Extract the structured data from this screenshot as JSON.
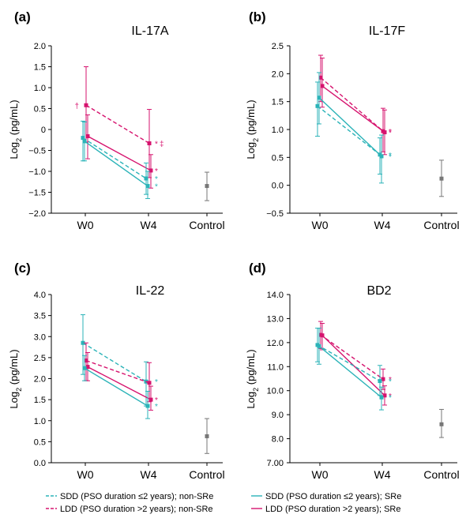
{
  "colors": {
    "teal": "#2bb3b8",
    "magenta": "#d6136e",
    "control": "#777777",
    "axis": "#000000"
  },
  "x_categories": [
    "W0",
    "W4",
    "Control"
  ],
  "y_label_main": "Log",
  "y_label_sub": "2",
  "y_label_unit": " (pg/mL)",
  "legend": [
    {
      "key": "sdd_nonsre",
      "text": "SDD (PSO duration ≤2 years); non-SRe",
      "color": "teal",
      "dash": true
    },
    {
      "key": "sdd_sre",
      "text": "SDD (PSO duration ≤2 years); SRe",
      "color": "teal",
      "dash": false
    },
    {
      "key": "ldd_nonsre",
      "text": "LDD (PSO duration >2 years); non-SRe",
      "color": "magenta",
      "dash": true
    },
    {
      "key": "ldd_sre",
      "text": "LDD (PSO duration >2 years); SRe",
      "color": "magenta",
      "dash": false
    }
  ],
  "chart_data": [
    {
      "type": "line",
      "letter": "(a)",
      "title": "IL-17A",
      "ylim": [
        -2.0,
        2.0
      ],
      "yticks": [
        "2.0",
        "1.5",
        "1.0",
        "0.5",
        "0",
        "−0.5",
        "−1.0",
        "−1.5",
        "−2.0"
      ],
      "ytick_values": [
        2.0,
        1.5,
        1.0,
        0.5,
        0,
        -0.5,
        -1.0,
        -1.5,
        -2.0
      ],
      "series": [
        {
          "key": "ldd_nonsre",
          "w0": {
            "mean": 0.58,
            "lo": -0.3,
            "hi": 1.5
          },
          "w4": {
            "mean": -0.33,
            "lo": -1.15,
            "hi": 0.48
          }
        },
        {
          "key": "ldd_sre",
          "w0": {
            "mean": -0.16,
            "lo": -0.7,
            "hi": 0.35
          },
          "w4": {
            "mean": -0.98,
            "lo": -1.4,
            "hi": -0.6
          }
        },
        {
          "key": "sdd_nonsre",
          "w0": {
            "mean": -0.2,
            "lo": -0.75,
            "hi": 0.2
          },
          "w4": {
            "mean": -1.17,
            "lo": -1.55,
            "hi": -0.8
          }
        },
        {
          "key": "sdd_sre",
          "w0": {
            "mean": -0.28,
            "lo": -0.75,
            "hi": 0.18
          },
          "w4": {
            "mean": -1.35,
            "lo": -1.65,
            "hi": -1.0
          }
        }
      ],
      "control": {
        "mean": -1.35,
        "lo": -1.7,
        "hi": -1.02
      },
      "annotations": [
        {
          "text": "†",
          "at": "w0",
          "series": "ldd_nonsre",
          "side": "left",
          "color": "magenta"
        },
        {
          "text": "*",
          "at": "w4",
          "series": "ldd_nonsre",
          "side": "right",
          "color": "magenta"
        },
        {
          "text": "‡",
          "at": "w4",
          "series": "ldd_nonsre",
          "side": "right2",
          "color": "magenta"
        },
        {
          "text": "*",
          "at": "w4",
          "series": "ldd_sre",
          "side": "right",
          "color": "magenta"
        },
        {
          "text": "*",
          "at": "w4",
          "series": "sdd_nonsre",
          "side": "right",
          "color": "teal"
        },
        {
          "text": "*",
          "at": "w4",
          "series": "sdd_sre",
          "side": "right",
          "color": "teal"
        }
      ]
    },
    {
      "type": "line",
      "letter": "(b)",
      "title": "IL-17F",
      "ylim": [
        -0.5,
        2.5
      ],
      "yticks": [
        "2.5",
        "2.0",
        "1.5",
        "1.0",
        "0.5",
        "0.0",
        "−0.5"
      ],
      "ytick_values": [
        2.5,
        2.0,
        1.5,
        1.0,
        0.5,
        0.0,
        -0.5
      ],
      "series": [
        {
          "key": "ldd_nonsre",
          "w0": {
            "mean": 1.93,
            "lo": 1.5,
            "hi": 2.33
          },
          "w4": {
            "mean": 0.97,
            "lo": 0.6,
            "hi": 1.38
          }
        },
        {
          "key": "ldd_sre",
          "w0": {
            "mean": 1.78,
            "lo": 1.4,
            "hi": 2.28
          },
          "w4": {
            "mean": 0.95,
            "lo": 0.55,
            "hi": 1.35
          }
        },
        {
          "key": "sdd_nonsre",
          "w0": {
            "mean": 1.42,
            "lo": 0.88,
            "hi": 1.85
          },
          "w4": {
            "mean": 0.55,
            "lo": 0.2,
            "hi": 0.85
          }
        },
        {
          "key": "sdd_sre",
          "w0": {
            "mean": 1.57,
            "lo": 1.1,
            "hi": 2.02
          },
          "w4": {
            "mean": 0.52,
            "lo": 0.04,
            "hi": 0.9
          }
        }
      ],
      "control": {
        "mean": 0.12,
        "lo": -0.2,
        "hi": 0.45
      },
      "annotations": [
        {
          "text": "*",
          "at": "w4",
          "series": "ldd_nonsre",
          "side": "right",
          "color": "magenta"
        },
        {
          "text": "*",
          "at": "w4",
          "series": "ldd_sre",
          "side": "right",
          "color": "magenta"
        },
        {
          "text": "*",
          "at": "w4",
          "series": "sdd_nonsre",
          "side": "right",
          "color": "teal"
        },
        {
          "text": "*",
          "at": "w4",
          "series": "sdd_sre",
          "side": "right",
          "color": "teal"
        }
      ]
    },
    {
      "type": "line",
      "letter": "(c)",
      "title": "IL-22",
      "ylim": [
        0.0,
        4.0
      ],
      "yticks": [
        "4.0",
        "3.5",
        "3.0",
        "2.5",
        "2.0",
        "1.5",
        "1.0",
        "0.5",
        "0.0"
      ],
      "ytick_values": [
        4.0,
        3.5,
        3.0,
        2.5,
        2.0,
        1.5,
        1.0,
        0.5,
        0.0
      ],
      "series": [
        {
          "key": "sdd_nonsre",
          "w0": {
            "mean": 2.85,
            "lo": 2.1,
            "hi": 3.52
          },
          "w4": {
            "mean": 1.93,
            "lo": 1.35,
            "hi": 2.4
          }
        },
        {
          "key": "ldd_nonsre",
          "w0": {
            "mean": 2.43,
            "lo": 1.95,
            "hi": 2.85
          },
          "w4": {
            "mean": 1.9,
            "lo": 1.45,
            "hi": 2.38
          }
        },
        {
          "key": "ldd_sre",
          "w0": {
            "mean": 2.28,
            "lo": 1.95,
            "hi": 2.62
          },
          "w4": {
            "mean": 1.5,
            "lo": 1.25,
            "hi": 1.82
          }
        },
        {
          "key": "sdd_sre",
          "w0": {
            "mean": 2.25,
            "lo": 1.95,
            "hi": 2.55
          },
          "w4": {
            "mean": 1.35,
            "lo": 1.05,
            "hi": 1.7
          }
        }
      ],
      "control": {
        "mean": 0.63,
        "lo": 0.22,
        "hi": 1.05
      },
      "annotations": [
        {
          "text": "*",
          "at": "w4",
          "series": "sdd_nonsre",
          "side": "right",
          "color": "teal"
        },
        {
          "text": "*",
          "at": "w4",
          "series": "ldd_sre",
          "side": "right",
          "color": "magenta"
        },
        {
          "text": "*",
          "at": "w4",
          "series": "sdd_sre",
          "side": "right",
          "color": "teal"
        }
      ]
    },
    {
      "type": "line",
      "letter": "(d)",
      "title": "BD2",
      "ylim": [
        7.0,
        14.0
      ],
      "yticks": [
        "14.0",
        "13.0",
        "12.0",
        "11.0",
        "10.0",
        "9.0",
        "8.0",
        "7.00"
      ],
      "ytick_values": [
        14.0,
        13.0,
        12.0,
        11.0,
        10.0,
        9.0,
        8.0,
        7.0
      ],
      "series": [
        {
          "key": "ldd_nonsre",
          "w0": {
            "mean": 12.32,
            "lo": 11.75,
            "hi": 12.88
          },
          "w4": {
            "mean": 10.48,
            "lo": 10.05,
            "hi": 10.9
          }
        },
        {
          "key": "ldd_sre",
          "w0": {
            "mean": 12.3,
            "lo": 11.7,
            "hi": 12.8
          },
          "w4": {
            "mean": 9.8,
            "lo": 9.4,
            "hi": 10.2
          }
        },
        {
          "key": "sdd_nonsre",
          "w0": {
            "mean": 11.9,
            "lo": 11.2,
            "hi": 12.6
          },
          "w4": {
            "mean": 10.4,
            "lo": 9.8,
            "hi": 11.05
          }
        },
        {
          "key": "sdd_sre",
          "w0": {
            "mean": 11.85,
            "lo": 11.1,
            "hi": 12.6
          },
          "w4": {
            "mean": 9.72,
            "lo": 9.2,
            "hi": 10.15
          }
        }
      ],
      "control": {
        "mean": 8.6,
        "lo": 8.05,
        "hi": 9.22
      },
      "annotations": [
        {
          "text": "*",
          "at": "w4",
          "series": "ldd_nonsre",
          "side": "right",
          "color": "magenta"
        },
        {
          "text": "*",
          "at": "w4",
          "series": "sdd_nonsre",
          "side": "right",
          "color": "teal"
        },
        {
          "text": "*",
          "at": "w4",
          "series": "ldd_sre",
          "side": "right",
          "color": "magenta"
        },
        {
          "text": "*",
          "at": "w4",
          "series": "sdd_sre",
          "side": "right",
          "color": "teal"
        }
      ]
    }
  ]
}
